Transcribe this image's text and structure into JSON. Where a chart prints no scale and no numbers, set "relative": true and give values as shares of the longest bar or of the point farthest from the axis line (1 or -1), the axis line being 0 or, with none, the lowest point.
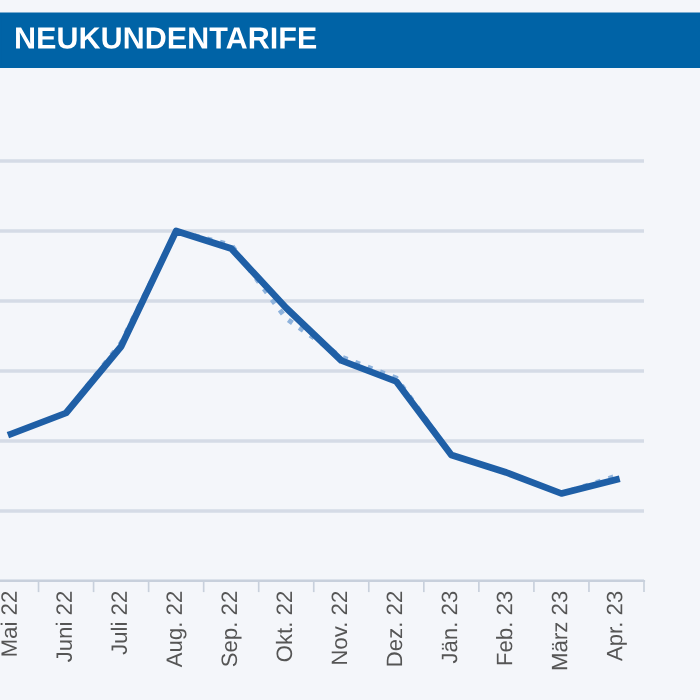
{
  "chart_data": {
    "type": "line",
    "title": "NEUKUNDENTARIFE",
    "relative": true,
    "grid": "y",
    "categories": [
      "Mai 22",
      "Juni 22",
      "Juli 22",
      "Aug. 22",
      "Sep. 22",
      "Okt. 22",
      "Nov. 22",
      "Dez. 22",
      "Jän. 23",
      "Feb. 23",
      "März 23",
      "Apr. 23"
    ],
    "series": [
      {
        "color": "#8fb3dc",
        "line_style": "dotted",
        "values": [
          0.42,
          0.48,
          0.68,
          1,
          0.96,
          0.75,
          0.64,
          0.58,
          0.36,
          0.31,
          0.25,
          0.3
        ]
      },
      {
        "color": "#1f5fa6",
        "line_style": "solid",
        "values": [
          0.42,
          0.48,
          0.67,
          1,
          0.95,
          0.78,
          0.63,
          0.57,
          0.36,
          0.31,
          0.25,
          0.29
        ]
      }
    ]
  }
}
